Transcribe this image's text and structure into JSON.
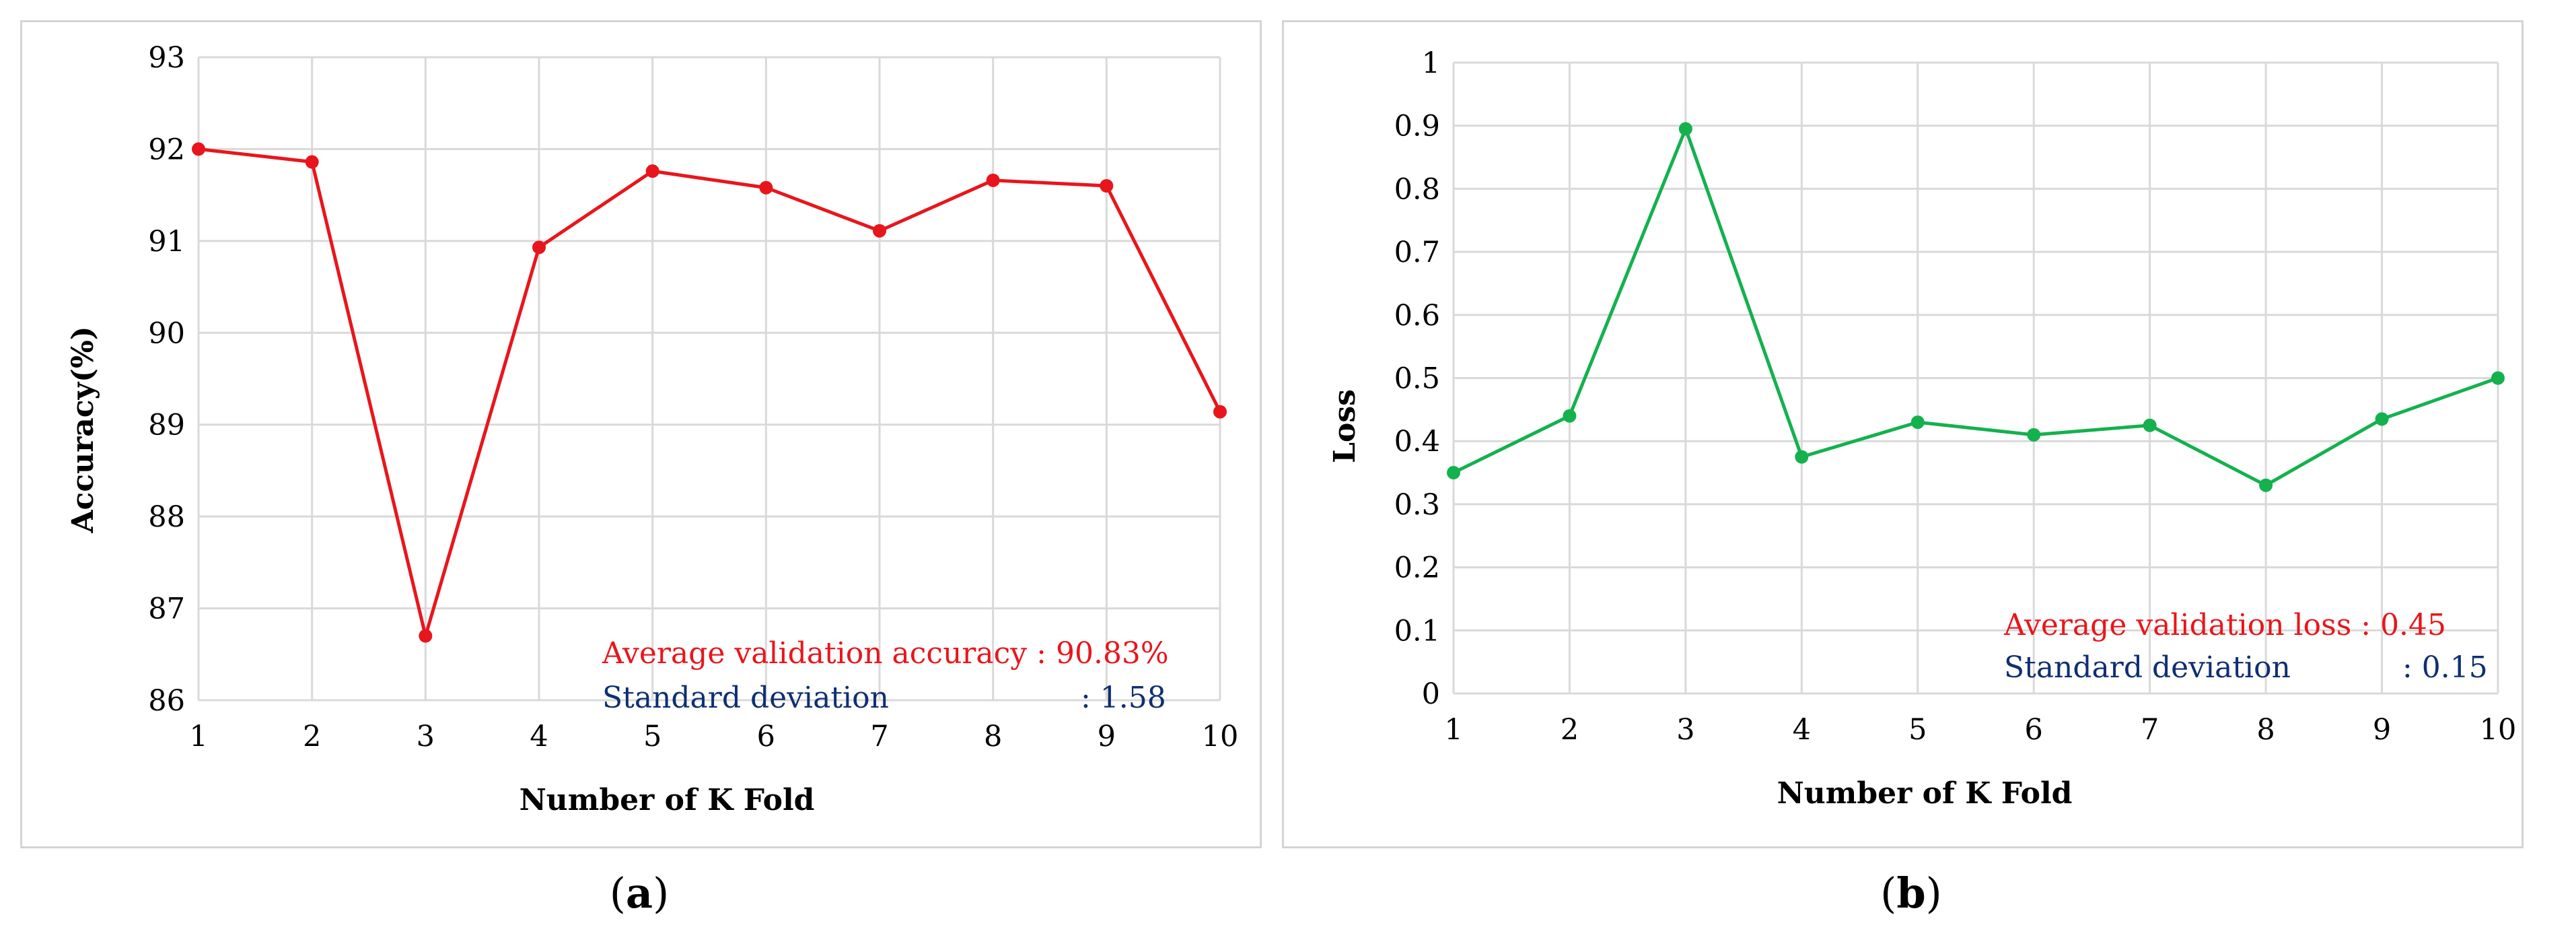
{
  "chart_data": [
    {
      "type": "line",
      "panel_label": "a",
      "xlabel": "Number of K Fold",
      "ylabel": "Accuracy(%)",
      "x": [
        1,
        2,
        3,
        4,
        5,
        6,
        7,
        8,
        9,
        10
      ],
      "ylim": [
        86,
        93
      ],
      "yticks": [
        86,
        87,
        88,
        89,
        90,
        91,
        92,
        93
      ],
      "ytick_labels": [
        "86",
        "87",
        "88",
        "89",
        "90",
        "91",
        "92",
        "93"
      ],
      "xtick_labels": [
        "1",
        "2",
        "3",
        "4",
        "5",
        "6",
        "7",
        "8",
        "9",
        "10"
      ],
      "series": [
        {
          "values": [
            92.0,
            91.86,
            86.7,
            90.93,
            91.76,
            91.58,
            91.11,
            91.66,
            91.6,
            89.14
          ],
          "color": "#e8161c"
        }
      ],
      "grid": true,
      "annotations": [
        {
          "text": "Average validation accuracy : 90.83%",
          "color": "#e8161c"
        },
        {
          "label": "Standard deviation",
          "value": ": 1.58",
          "color": "#0f2f73"
        }
      ]
    },
    {
      "type": "line",
      "panel_label": "b",
      "xlabel": "Number of K Fold",
      "ylabel": "Loss",
      "x": [
        1,
        2,
        3,
        4,
        5,
        6,
        7,
        8,
        9,
        10
      ],
      "ylim": [
        0,
        1
      ],
      "yticks": [
        0,
        0.1,
        0.2,
        0.3,
        0.4,
        0.5,
        0.6,
        0.7,
        0.8,
        0.9,
        1
      ],
      "ytick_labels": [
        "0",
        "0.1",
        "0.2",
        "0.3",
        "0.4",
        "0.5",
        "0.6",
        "0.7",
        "0.8",
        "0.9",
        "1"
      ],
      "xtick_labels": [
        "1",
        "2",
        "3",
        "4",
        "5",
        "6",
        "7",
        "8",
        "9",
        "10"
      ],
      "series": [
        {
          "values": [
            0.35,
            0.44,
            0.895,
            0.375,
            0.43,
            0.41,
            0.425,
            0.33,
            0.435,
            0.5
          ],
          "color": "#14b14e"
        }
      ],
      "grid": true,
      "annotations": [
        {
          "text": "Average validation loss : 0.45",
          "color": "#e8161c"
        },
        {
          "label": "Standard deviation",
          "value": ": 0.15",
          "color": "#0f2f73"
        }
      ]
    }
  ]
}
